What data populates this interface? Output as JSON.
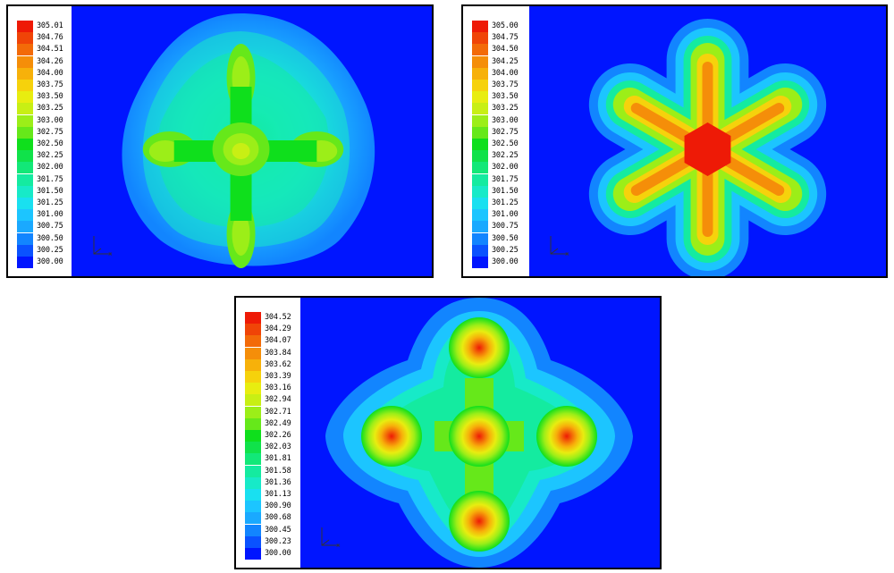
{
  "colors": [
    "#0015ff",
    "#0a52ff",
    "#1285ff",
    "#1aa9ff",
    "#1cc5ff",
    "#19e0f0",
    "#17eac8",
    "#14eba0",
    "#12e878",
    "#10e24a",
    "#0fdf1c",
    "#66e81a",
    "#9cee18",
    "#c8ef14",
    "#e8ed10",
    "#f6d20c",
    "#f7b10a",
    "#f58e09",
    "#f36a08",
    "#f04407",
    "#ee1a06"
  ],
  "panels": [
    {
      "labels": [
        "305.01",
        "304.76",
        "304.51",
        "304.26",
        "304.00",
        "303.75",
        "303.50",
        "303.25",
        "303.00",
        "302.75",
        "302.50",
        "302.25",
        "302.00",
        "301.75",
        "301.50",
        "301.25",
        "301.00",
        "300.75",
        "300.50",
        "300.25",
        "300.00"
      ]
    },
    {
      "labels": [
        "305.00",
        "304.75",
        "304.50",
        "304.25",
        "304.00",
        "303.75",
        "303.50",
        "303.25",
        "303.00",
        "302.75",
        "302.50",
        "302.25",
        "302.00",
        "301.75",
        "301.50",
        "301.25",
        "301.00",
        "300.75",
        "300.50",
        "300.25",
        "300.00"
      ]
    },
    {
      "labels": [
        "304.52",
        "304.29",
        "304.07",
        "303.84",
        "303.62",
        "303.39",
        "303.16",
        "302.94",
        "302.71",
        "302.49",
        "302.26",
        "302.03",
        "301.81",
        "301.58",
        "301.36",
        "301.13",
        "300.90",
        "300.68",
        "300.45",
        "300.23",
        "300.00"
      ]
    }
  ]
}
